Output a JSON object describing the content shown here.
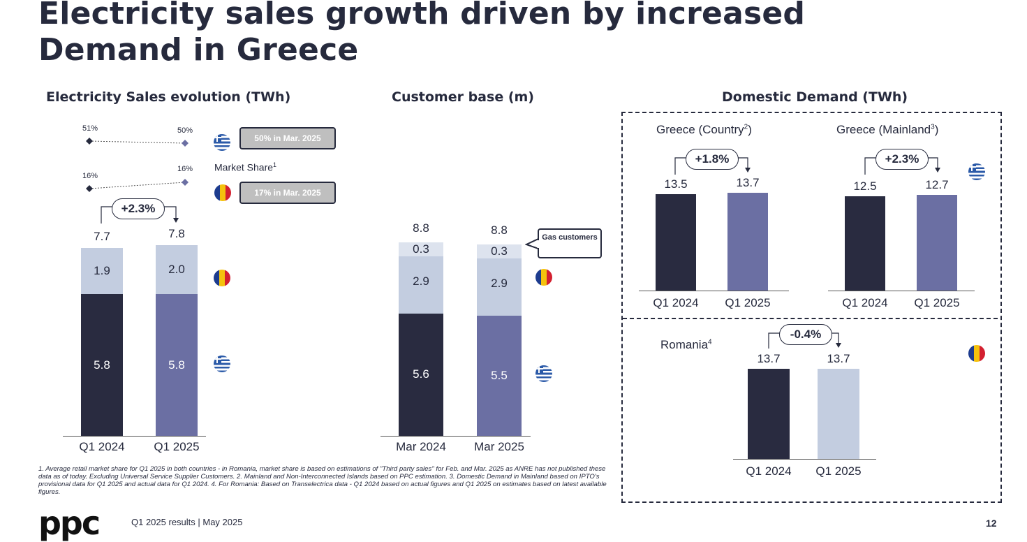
{
  "title": "Electricity sales growth driven by increased Demand in Greece",
  "footer": {
    "text": "Q1 2025 results | May 2025",
    "page": "12",
    "logo": "ppc"
  },
  "footnote": "1.  Average retail market share for Q1 2025 in both countries - in Romania, market share is  based on estimations of \"Third party sales\" for Feb. and Mar. 2025 as ANRE has not published  these data as of today. Excluding Universal Service Supplier Customers. 2. Mainland and Non-Interconnected Islands based on PPC estimation. 3. Domestic Demand in Mainland based on IPTO's provisional data for Q1 2025 and actual data for Q1 2024. 4. For Romania: Based on Transelectrica data - Q1 2024 based on actual figures and Q1 2025 on estimates based on latest available figures.",
  "market_share": {
    "label": "Market Share",
    "label_sup": "1",
    "greece": {
      "q1_2024": "51%",
      "q1_2025": "50%",
      "callout": "50% in Mar. 2025"
    },
    "romania": {
      "q1_2024": "16%",
      "q1_2025": "16%",
      "callout": "17% in Mar. 2025"
    }
  },
  "gas_callout": "Gas customers",
  "flags": {
    "greece": "greece-flag-icon",
    "romania": "romania-flag-icon"
  },
  "colors": {
    "dark": "#292b40",
    "purple": "#6b6fa3",
    "light": "#c3cde0",
    "pale": "#dde3ee"
  },
  "chart_data": [
    {
      "type": "bar",
      "title": "Electricity Sales evolution (TWh)",
      "stacked": true,
      "categories": [
        "Q1 2024",
        "Q1 2025"
      ],
      "series": [
        {
          "values": [
            5.8,
            5.8
          ]
        },
        {
          "values": [
            1.9,
            2.0
          ]
        }
      ],
      "totals": [
        "7.7",
        "7.8"
      ],
      "growth": "+2.3%"
    },
    {
      "type": "bar",
      "title": "Customer base (m)",
      "stacked": true,
      "categories": [
        "Mar 2024",
        "Mar 2025"
      ],
      "series": [
        {
          "values": [
            5.6,
            5.5
          ]
        },
        {
          "values": [
            2.9,
            2.9
          ]
        },
        {
          "values": [
            0.3,
            0.3
          ]
        }
      ],
      "totals": [
        "8.8",
        "8.8"
      ]
    },
    {
      "type": "bar",
      "title": "Domestic Demand (TWh)",
      "panels": [
        {
          "label": "Greece (Country",
          "sup": "2",
          "label_end": ")",
          "categories": [
            "Q1 2024",
            "Q1 2025"
          ],
          "values": [
            13.5,
            13.7
          ],
          "growth": "+1.8%"
        },
        {
          "label": "Greece (Mainland",
          "sup": "3",
          "label_end": ")",
          "categories": [
            "Q1 2024",
            "Q1 2025"
          ],
          "values": [
            12.5,
            12.7
          ],
          "growth": "+2.3%"
        },
        {
          "label": "Romania",
          "sup": "4",
          "label_end": "",
          "categories": [
            "Q1 2024",
            "Q1 2025"
          ],
          "values": [
            13.7,
            13.7
          ],
          "growth": "-0.4%"
        }
      ]
    }
  ]
}
